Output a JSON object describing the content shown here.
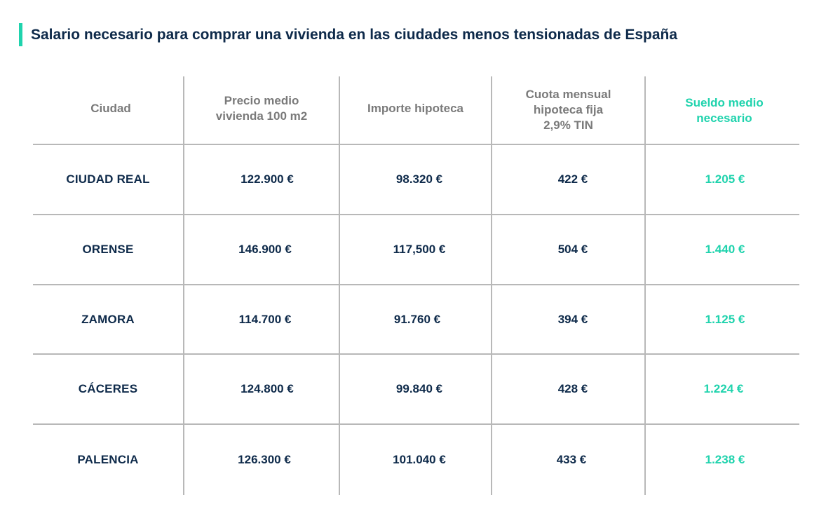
{
  "title": "Salario necesario para comprar una vivienda en las ciudades menos tensionadas de España",
  "colors": {
    "accent": "#1fd3ad",
    "navy": "#0e2a4a",
    "header_gray": "#7a7a7a",
    "rule_gray": "#b8b8b8"
  },
  "headers": {
    "city": "Ciudad",
    "price_line1": "Precio medio",
    "price_line2": "vivienda 100 m2",
    "mortgage": "Importe hipoteca",
    "fee_line1": "Cuota mensual",
    "fee_line2": "hipoteca fija",
    "fee_line3": "2,9% TIN",
    "salary_line1": "Sueldo medio",
    "salary_line2": "necesario"
  },
  "rows": [
    {
      "city": "CIUDAD REAL",
      "price": "122.900 €",
      "mortgage": "98.320 €",
      "fee": "422 €",
      "salary": "1.205 €"
    },
    {
      "city": "ORENSE",
      "price": "146.900 €",
      "mortgage": "117,500 €",
      "fee": "504 €",
      "salary": "1.440 €"
    },
    {
      "city": "ZAMORA",
      "price": "114.700 €",
      "mortgage": "91.760 €",
      "fee": "394 €",
      "salary": "1.125 €"
    },
    {
      "city": "CÁCERES",
      "price": "124.800 €",
      "mortgage": "99.840 €",
      "fee": "428 €",
      "salary": "1.224 €"
    },
    {
      "city": "PALENCIA",
      "price": "126.300 €",
      "mortgage": "101.040 €",
      "fee": "433 €",
      "salary": "1.238 €"
    }
  ]
}
